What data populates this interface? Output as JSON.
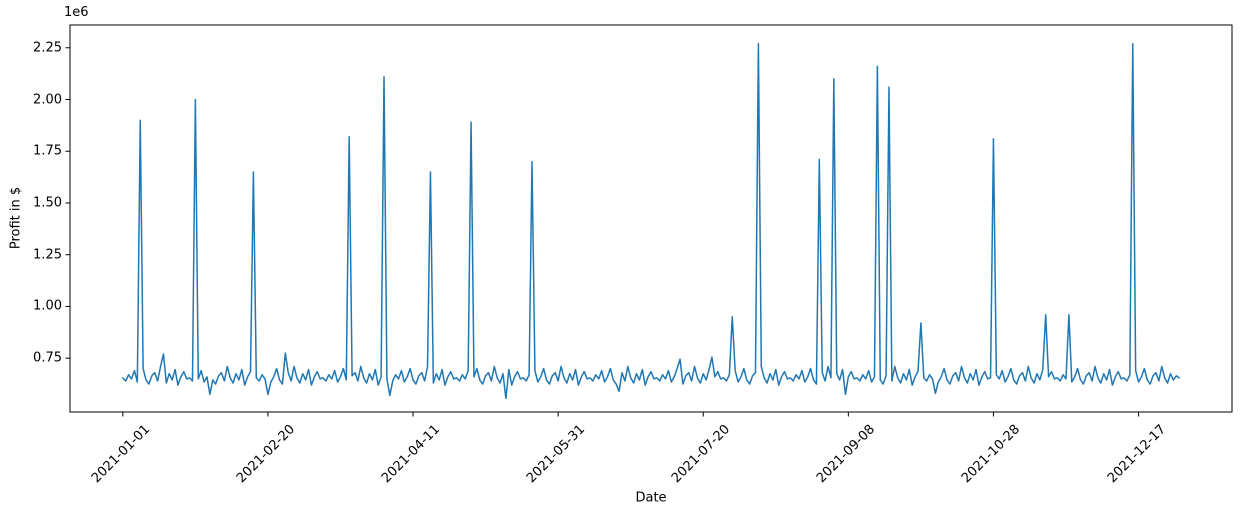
{
  "chart_data": {
    "type": "line",
    "title": "",
    "xlabel": "Date",
    "ylabel": "Profit in $",
    "offset_text": "1e6",
    "line_color": "#1f77b4",
    "frame_color": "#000000",
    "grid": "off",
    "legend": "none",
    "x_tick_rotation_deg": 45,
    "start_date": "2021-01-01",
    "x_unit": "daily values, day offset from 2021-01-01",
    "xlim_days": [
      -18.2,
      382.2
    ],
    "ylim": [
      490000,
      2360000
    ],
    "yticks": [
      {
        "value": 750000,
        "label": "0.75"
      },
      {
        "value": 1000000,
        "label": "1.00"
      },
      {
        "value": 1250000,
        "label": "1.25"
      },
      {
        "value": 1500000,
        "label": "1.50"
      },
      {
        "value": 1750000,
        "label": "1.75"
      },
      {
        "value": 2000000,
        "label": "2.00"
      },
      {
        "value": 2250000,
        "label": "2.25"
      }
    ],
    "xticks": [
      {
        "day": 0,
        "label": "2021-01-01"
      },
      {
        "day": 50,
        "label": "2021-02-20"
      },
      {
        "day": 100,
        "label": "2021-04-11"
      },
      {
        "day": 150,
        "label": "2021-05-31"
      },
      {
        "day": 200,
        "label": "2021-07-20"
      },
      {
        "day": 250,
        "label": "2021-09-08"
      },
      {
        "day": 300,
        "label": "2021-10-28"
      },
      {
        "day": 350,
        "label": "2021-12-17"
      }
    ],
    "notable_spikes": [
      {
        "date": "2021-01-07",
        "value": 1900000
      },
      {
        "date": "2021-01-26",
        "value": 2000000
      },
      {
        "date": "2021-02-15",
        "value": 1650000
      },
      {
        "date": "2021-03-20",
        "value": 1820000
      },
      {
        "date": "2021-04-01",
        "value": 2110000
      },
      {
        "date": "2021-04-17",
        "value": 1650000
      },
      {
        "date": "2021-05-01",
        "value": 1890000
      },
      {
        "date": "2021-05-22",
        "value": 1700000
      },
      {
        "date": "2021-07-30",
        "value": 950000
      },
      {
        "date": "2021-08-08",
        "value": 2270000
      },
      {
        "date": "2021-08-29",
        "value": 1710000
      },
      {
        "date": "2021-09-03",
        "value": 2100000
      },
      {
        "date": "2021-09-18",
        "value": 2160000
      },
      {
        "date": "2021-09-22",
        "value": 2060000
      },
      {
        "date": "2021-10-03",
        "value": 920000
      },
      {
        "date": "2021-10-28",
        "value": 1810000
      },
      {
        "date": "2021-11-15",
        "value": 960000
      },
      {
        "date": "2021-11-23",
        "value": 960000
      },
      {
        "date": "2021-12-15",
        "value": 2270000
      }
    ],
    "values": [
      655000,
      640000,
      670000,
      650000,
      690000,
      635000,
      1900000,
      700000,
      645000,
      625000,
      665000,
      680000,
      640000,
      710000,
      770000,
      630000,
      675000,
      645000,
      695000,
      620000,
      660000,
      685000,
      650000,
      655000,
      640000,
      2000000,
      650000,
      690000,
      635000,
      660000,
      575000,
      645000,
      625000,
      665000,
      680000,
      640000,
      710000,
      655000,
      630000,
      675000,
      645000,
      695000,
      620000,
      660000,
      685000,
      1650000,
      655000,
      640000,
      670000,
      650000,
      575000,
      635000,
      660000,
      700000,
      645000,
      625000,
      775000,
      680000,
      640000,
      710000,
      655000,
      630000,
      675000,
      645000,
      695000,
      620000,
      660000,
      685000,
      650000,
      655000,
      640000,
      670000,
      650000,
      690000,
      635000,
      660000,
      700000,
      645000,
      1820000,
      665000,
      680000,
      640000,
      710000,
      655000,
      630000,
      675000,
      645000,
      695000,
      620000,
      660000,
      2110000,
      650000,
      570000,
      640000,
      670000,
      650000,
      690000,
      635000,
      660000,
      700000,
      645000,
      625000,
      665000,
      680000,
      640000,
      710000,
      1650000,
      630000,
      675000,
      645000,
      695000,
      620000,
      660000,
      685000,
      650000,
      655000,
      640000,
      670000,
      650000,
      690000,
      1890000,
      660000,
      700000,
      645000,
      625000,
      665000,
      680000,
      640000,
      710000,
      655000,
      630000,
      675000,
      555000,
      695000,
      620000,
      660000,
      685000,
      650000,
      655000,
      640000,
      670000,
      1700000,
      690000,
      635000,
      660000,
      700000,
      645000,
      625000,
      665000,
      680000,
      640000,
      710000,
      655000,
      630000,
      675000,
      645000,
      695000,
      620000,
      660000,
      685000,
      650000,
      655000,
      640000,
      670000,
      650000,
      690000,
      635000,
      660000,
      700000,
      645000,
      625000,
      590000,
      680000,
      640000,
      710000,
      655000,
      630000,
      675000,
      645000,
      695000,
      620000,
      660000,
      685000,
      650000,
      655000,
      640000,
      670000,
      650000,
      690000,
      635000,
      660000,
      700000,
      745000,
      625000,
      665000,
      680000,
      640000,
      710000,
      655000,
      630000,
      675000,
      645000,
      695000,
      755000,
      660000,
      685000,
      650000,
      655000,
      640000,
      670000,
      950000,
      690000,
      635000,
      660000,
      700000,
      645000,
      625000,
      665000,
      680000,
      2270000,
      710000,
      655000,
      630000,
      675000,
      645000,
      695000,
      620000,
      660000,
      685000,
      650000,
      655000,
      640000,
      670000,
      650000,
      690000,
      635000,
      660000,
      700000,
      645000,
      625000,
      1710000,
      680000,
      640000,
      710000,
      655000,
      2100000,
      675000,
      645000,
      695000,
      575000,
      660000,
      685000,
      650000,
      655000,
      640000,
      670000,
      650000,
      690000,
      635000,
      660000,
      2160000,
      645000,
      625000,
      665000,
      2060000,
      640000,
      710000,
      655000,
      630000,
      675000,
      645000,
      695000,
      620000,
      660000,
      685000,
      920000,
      655000,
      640000,
      670000,
      650000,
      580000,
      635000,
      660000,
      700000,
      645000,
      625000,
      665000,
      680000,
      640000,
      710000,
      655000,
      630000,
      675000,
      645000,
      695000,
      620000,
      660000,
      685000,
      650000,
      655000,
      1810000,
      670000,
      650000,
      690000,
      635000,
      660000,
      700000,
      645000,
      625000,
      665000,
      680000,
      640000,
      710000,
      655000,
      630000,
      675000,
      645000,
      695000,
      960000,
      660000,
      685000,
      650000,
      655000,
      640000,
      670000,
      650000,
      960000,
      635000,
      660000,
      700000,
      645000,
      625000,
      665000,
      680000,
      640000,
      710000,
      655000,
      630000,
      675000,
      645000,
      695000,
      620000,
      660000,
      685000,
      650000,
      655000,
      640000,
      670000,
      2270000,
      690000,
      635000,
      660000,
      700000,
      645000,
      625000,
      665000,
      680000,
      640000,
      710000,
      655000,
      630000,
      675000,
      645000,
      665000,
      655000
    ]
  }
}
